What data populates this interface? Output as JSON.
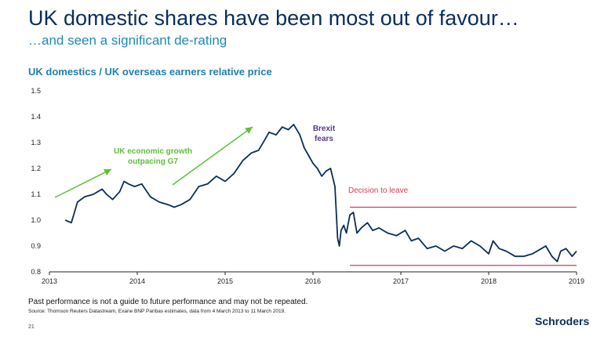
{
  "header": {
    "title": "UK domestic shares have been most out of favour…",
    "subtitle": "…and seen a significant de-rating"
  },
  "chart_data": {
    "type": "line",
    "title": "UK domestics  / UK overseas earners relative price",
    "xlabel": "",
    "ylabel": "",
    "xlim": [
      2013,
      2019
    ],
    "ylim": [
      0.8,
      1.5
    ],
    "x_ticks": [
      "2013",
      "2014",
      "2015",
      "2016",
      "2017",
      "2018",
      "2019"
    ],
    "y_ticks": [
      "0.8",
      "0.9",
      "1.0",
      "1.1",
      "1.2",
      "1.3",
      "1.4",
      "1.5"
    ],
    "grid": false,
    "line_color": "#0b2d5a",
    "series": [
      {
        "x": [
          2013.18,
          2013.25,
          2013.32,
          2013.4,
          2013.5,
          2013.6,
          2013.65,
          2013.72,
          2013.8,
          2013.85,
          2013.9,
          2013.97,
          2014.05,
          2014.15,
          2014.25,
          2014.35,
          2014.42,
          2014.5,
          2014.6,
          2014.7,
          2014.8,
          2014.9,
          2015.0,
          2015.1,
          2015.2,
          2015.3,
          2015.38,
          2015.45,
          2015.5,
          2015.58,
          2015.65,
          2015.72,
          2015.78,
          2015.85,
          2015.9,
          2015.95,
          2016.0,
          2016.05,
          2016.1,
          2016.15,
          2016.2,
          2016.25,
          2016.28,
          2016.3,
          2016.32,
          2016.35,
          2016.38,
          2016.42,
          2016.46,
          2016.5,
          2016.55,
          2016.62,
          2016.68,
          2016.75,
          2016.85,
          2016.95,
          2017.05,
          2017.12,
          2017.2,
          2017.3,
          2017.4,
          2017.5,
          2017.6,
          2017.7,
          2017.8,
          2017.9,
          2018.0,
          2018.05,
          2018.12,
          2018.2,
          2018.3,
          2018.4,
          2018.5,
          2018.6,
          2018.65,
          2018.72,
          2018.78,
          2018.82,
          2018.88,
          2018.95,
          2019.0
        ],
        "values": [
          1.0,
          0.99,
          1.07,
          1.09,
          1.1,
          1.12,
          1.1,
          1.08,
          1.11,
          1.15,
          1.14,
          1.13,
          1.14,
          1.09,
          1.07,
          1.06,
          1.05,
          1.06,
          1.08,
          1.13,
          1.14,
          1.17,
          1.15,
          1.18,
          1.23,
          1.26,
          1.27,
          1.31,
          1.34,
          1.33,
          1.36,
          1.35,
          1.37,
          1.33,
          1.28,
          1.25,
          1.22,
          1.2,
          1.17,
          1.19,
          1.2,
          1.13,
          0.93,
          0.9,
          0.96,
          0.98,
          0.95,
          1.02,
          1.03,
          0.95,
          0.97,
          0.99,
          0.96,
          0.97,
          0.95,
          0.94,
          0.96,
          0.92,
          0.93,
          0.89,
          0.9,
          0.88,
          0.9,
          0.89,
          0.92,
          0.9,
          0.87,
          0.92,
          0.89,
          0.88,
          0.86,
          0.86,
          0.87,
          0.89,
          0.9,
          0.86,
          0.84,
          0.88,
          0.89,
          0.86,
          0.88
        ]
      }
    ],
    "annotations": {
      "growth_line1": "UK economic growth",
      "growth_line2": "outpacing G7",
      "brexit_line1": "Brexit",
      "brexit_line2": "fears",
      "decision": "Decision to leave"
    },
    "reference_levels": [
      1.05,
      0.825
    ],
    "colors": {
      "growth": "#5fbf3a",
      "brexit": "#5a3a8a",
      "decision": "#d33d5a",
      "axis": "#222222"
    }
  },
  "footer": {
    "disclaimer": "Past performance is not a guide to future performance and may not be repeated.",
    "source": "Source:  Thomson Reuters Datastream, Exane BNP Paribas estimates, data from 4 March 2013 to 11 March 2019.",
    "page_number": "21",
    "logo": "Schroders"
  }
}
